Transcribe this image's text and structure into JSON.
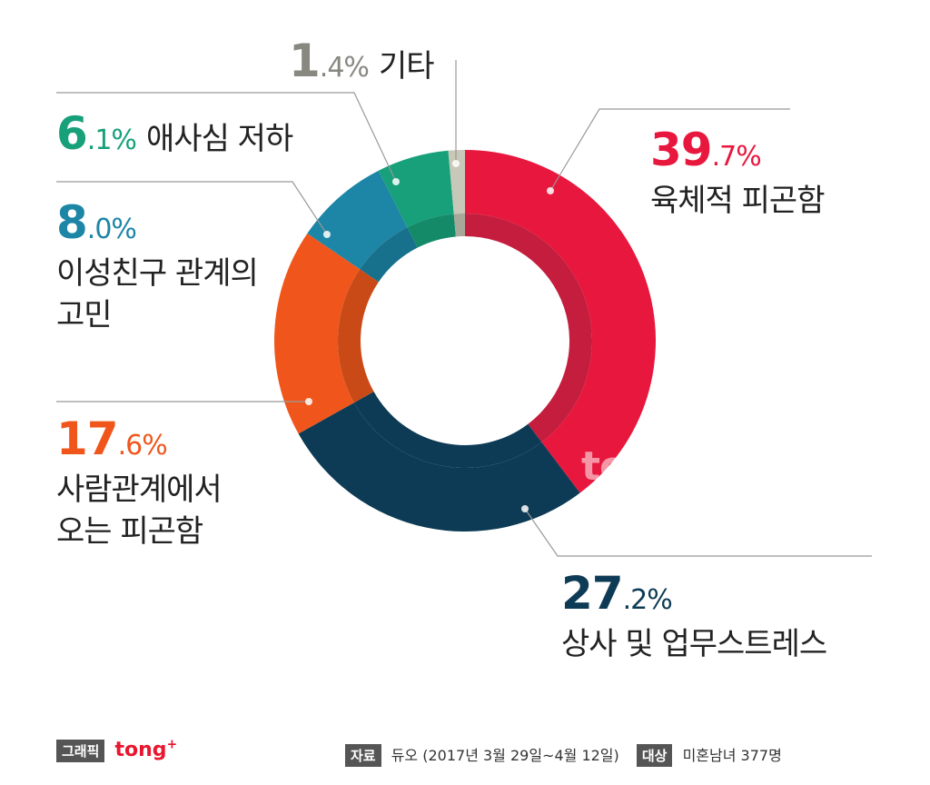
{
  "chart_data": {
    "type": "pie",
    "variant": "donut",
    "slices": [
      {
        "label": "육체적 피곤함",
        "int": "39",
        "dec": ".7%",
        "value": 39.7,
        "color": "#e8173d",
        "inner_color": "#c41d3e"
      },
      {
        "label": "상사 및 업무스트레스",
        "int": "27",
        "dec": ".2%",
        "value": 27.2,
        "color": "#0d3b55",
        "inner_color": "#0d3b55"
      },
      {
        "label": "사람관계에서 오는 피곤함",
        "line1": "사람관계에서",
        "line2": "오는 피곤함",
        "int": "17",
        "dec": ".6%",
        "value": 17.6,
        "color": "#f0561b",
        "inner_color": "#c94a17"
      },
      {
        "label": "이성친구 관계의 고민",
        "line1": "이성친구 관계의",
        "line2": "고민",
        "int": "8",
        "dec": ".0%",
        "value": 8.0,
        "color": "#1d86a6",
        "inner_color": "#17708c"
      },
      {
        "label": "애사심 저하",
        "int": "6",
        "dec": ".1%",
        "value": 6.1,
        "color": "#17a07a",
        "inner_color": "#148a69"
      },
      {
        "label": "기타",
        "int": "1",
        "dec": ".4%",
        "value": 1.4,
        "color": "#c8c8b8",
        "inner_color": "#a8a89a"
      }
    ]
  },
  "footer": {
    "graphic_tag": "그래픽",
    "brand": "tong",
    "brand_plus": "+",
    "source_tag": "자료",
    "source_text": "듀오 (2017년 3월 29일~4월 12일)",
    "target_tag": "대상",
    "target_text": "미혼남녀 377명"
  },
  "watermark": {
    "text": "tong",
    "plus": "+"
  }
}
